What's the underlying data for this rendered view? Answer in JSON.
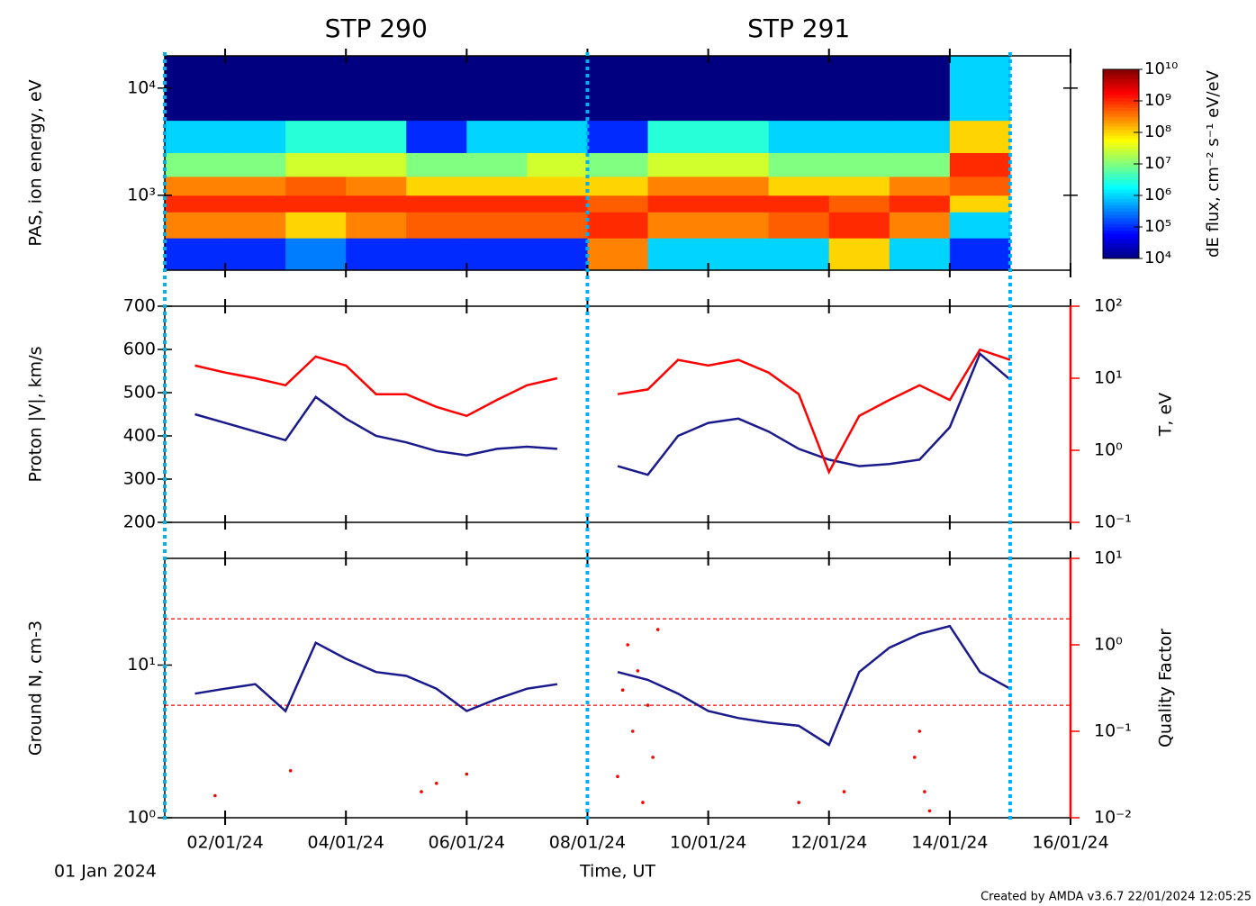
{
  "periods": [
    {
      "label": "STP 290",
      "start": "2024-01-01",
      "end": "2024-01-08"
    },
    {
      "label": "STP 291",
      "start": "2024-01-08",
      "end": "2024-01-15"
    }
  ],
  "period_color": "#00b0f0",
  "credit": "Created by AMDA v3.6.7 22/01/2024 12:05:25",
  "chart_data": [
    {
      "type": "heatmap",
      "ylabel": "PAS, ion energy, eV",
      "ylog": true,
      "ylim": [
        200,
        20000
      ],
      "yticks": [
        {
          "value": 1000,
          "label": "10³"
        },
        {
          "value": 10000,
          "label": "10⁴"
        }
      ],
      "x": [
        "2024-01-01",
        "2024-01-02",
        "2024-01-03",
        "2024-01-04",
        "2024-01-05",
        "2024-01-06",
        "2024-01-07",
        "2024-01-08",
        "2024-01-09",
        "2024-01-10",
        "2024-01-11",
        "2024-01-12",
        "2024-01-13",
        "2024-01-14",
        "2024-01-15"
      ],
      "y": [
        200,
        400,
        700,
        1000,
        1500,
        2500,
        5000,
        20000
      ],
      "z": [
        [
          100000.0,
          300000000.0,
          1000000000.0,
          300000000.0,
          10000000.0,
          1000000.0,
          10000.0
        ],
        [
          100000.0,
          300000000.0,
          1000000000.0,
          300000000.0,
          10000000.0,
          1000000.0,
          10000.0
        ],
        [
          300000.0,
          100000000.0,
          1000000000.0,
          500000000.0,
          30000000.0,
          3000000.0,
          10000.0
        ],
        [
          100000.0,
          300000000.0,
          1000000000.0,
          300000000.0,
          30000000.0,
          3000000.0,
          10000.0
        ],
        [
          100000.0,
          500000000.0,
          1000000000.0,
          100000000.0,
          10000000.0,
          100000.0,
          10000.0
        ],
        [
          100000.0,
          500000000.0,
          1000000000.0,
          100000000.0,
          10000000.0,
          1000000.0,
          10000.0
        ],
        [
          100000.0,
          500000000.0,
          1000000000.0,
          100000000.0,
          30000000.0,
          1000000.0,
          10000.0
        ],
        [
          300000000.0,
          1000000000.0,
          500000000.0,
          100000000.0,
          10000000.0,
          100000.0,
          10000.0
        ],
        [
          1000000.0,
          300000000.0,
          1000000000.0,
          300000000.0,
          30000000.0,
          3000000.0,
          10000.0
        ],
        [
          1000000.0,
          300000000.0,
          1000000000.0,
          300000000.0,
          30000000.0,
          3000000.0,
          10000.0
        ],
        [
          1000000.0,
          500000000.0,
          1000000000.0,
          100000000.0,
          10000000.0,
          1000000.0,
          10000.0
        ],
        [
          100000000.0,
          1000000000.0,
          500000000.0,
          100000000.0,
          10000000.0,
          1000000.0,
          10000.0
        ],
        [
          1000000.0,
          300000000.0,
          1000000000.0,
          300000000.0,
          10000000.0,
          1000000.0,
          10000.0
        ],
        [
          100000.0,
          1000000.0,
          100000000.0,
          500000000.0,
          1000000000.0,
          100000000.0,
          1000000.0
        ]
      ],
      "zlabel": "dE flux, cm⁻² s⁻¹ eV/eV",
      "zlog": true,
      "zlim": [
        10000.0,
        10000000000.0
      ],
      "zticks": [
        {
          "value": 10000.0,
          "label": "10⁴"
        },
        {
          "value": 100000.0,
          "label": "10⁵"
        },
        {
          "value": 1000000.0,
          "label": "10⁶"
        },
        {
          "value": 10000000.0,
          "label": "10⁷"
        },
        {
          "value": 100000000.0,
          "label": "10⁸"
        },
        {
          "value": 1000000000.0,
          "label": "10⁹"
        },
        {
          "value": 10000000000.0,
          "label": "10¹⁰"
        }
      ]
    },
    {
      "type": "line",
      "ylabel": "Proton |V|, km/s",
      "ylim": [
        200,
        700
      ],
      "yticks": [
        200,
        300,
        400,
        500,
        600,
        700
      ],
      "y2label": "T, eV",
      "y2log": true,
      "y2lim": [
        0.1,
        100
      ],
      "y2ticks": [
        {
          "value": 0.1,
          "label": "10⁻¹"
        },
        {
          "value": 1,
          "label": "10⁰"
        },
        {
          "value": 10,
          "label": "10¹"
        },
        {
          "value": 100,
          "label": "10²"
        }
      ],
      "x": [
        "2024-01-01T12:00",
        "2024-01-02T00:00",
        "2024-01-02T12:00",
        "2024-01-03T00:00",
        "2024-01-03T12:00",
        "2024-01-04T00:00",
        "2024-01-04T12:00",
        "2024-01-05T00:00",
        "2024-01-05T12:00",
        "2024-01-06T00:00",
        "2024-01-06T12:00",
        "2024-01-07T00:00",
        "2024-01-07T12:00",
        "2024-01-08T00:00",
        "2024-01-08T12:00",
        "2024-01-09T00:00",
        "2024-01-09T12:00",
        "2024-01-10T00:00",
        "2024-01-10T12:00",
        "2024-01-11T00:00",
        "2024-01-11T12:00",
        "2024-01-12T00:00",
        "2024-01-12T12:00",
        "2024-01-13T00:00",
        "2024-01-13T12:00",
        "2024-01-14T00:00",
        "2024-01-14T12:00",
        "2024-01-15T00:00"
      ],
      "series": [
        {
          "color": "#1a1a8c",
          "values": [
            450,
            430,
            410,
            390,
            490,
            440,
            400,
            385,
            365,
            355,
            370,
            375,
            370,
            null,
            330,
            310,
            400,
            430,
            440,
            410,
            370,
            345,
            330,
            335,
            345,
            420,
            590,
            530
          ]
        },
        {
          "color": "#ff0000",
          "axis": "y2",
          "values": [
            15,
            12,
            10,
            8,
            20,
            15,
            6,
            6,
            4,
            3,
            5,
            8,
            10,
            null,
            6,
            7,
            18,
            15,
            18,
            12,
            6,
            0.5,
            3,
            5,
            8,
            5,
            25,
            18
          ]
        }
      ]
    },
    {
      "type": "line",
      "ylabel": "Ground N, cm-3",
      "ylog": true,
      "ylim": [
        1,
        50
      ],
      "yticks": [
        {
          "value": 1,
          "label": "10⁰"
        },
        {
          "value": 10,
          "label": "10¹"
        }
      ],
      "y2label": "Quality Factor",
      "y2log": true,
      "y2lim": [
        0.01,
        10
      ],
      "y2ticks": [
        {
          "value": 0.01,
          "label": "10⁻²"
        },
        {
          "value": 0.1,
          "label": "10⁻¹"
        },
        {
          "value": 1,
          "label": "10⁰"
        },
        {
          "value": 10,
          "label": "10¹"
        }
      ],
      "x": [
        "2024-01-01T12:00",
        "2024-01-02T00:00",
        "2024-01-02T12:00",
        "2024-01-03T00:00",
        "2024-01-03T12:00",
        "2024-01-04T00:00",
        "2024-01-04T12:00",
        "2024-01-05T00:00",
        "2024-01-05T12:00",
        "2024-01-06T00:00",
        "2024-01-06T12:00",
        "2024-01-07T00:00",
        "2024-01-07T12:00",
        "2024-01-08T00:00",
        "2024-01-08T12:00",
        "2024-01-09T00:00",
        "2024-01-09T12:00",
        "2024-01-10T00:00",
        "2024-01-10T12:00",
        "2024-01-11T00:00",
        "2024-01-11T12:00",
        "2024-01-12T00:00",
        "2024-01-12T12:00",
        "2024-01-13T00:00",
        "2024-01-13T12:00",
        "2024-01-14T00:00",
        "2024-01-14T12:00",
        "2024-01-15T00:00"
      ],
      "series": [
        {
          "color": "#1a1a8c",
          "values": [
            6.5,
            7,
            7.5,
            5,
            14,
            11,
            9,
            8.5,
            7,
            5,
            6,
            7,
            7.5,
            null,
            9,
            8,
            6.5,
            5,
            4.5,
            4.2,
            4,
            3,
            9,
            13,
            16,
            18,
            9,
            7
          ]
        },
        {
          "type": "scatter",
          "color": "#ff0000",
          "axis": "y2",
          "x": [
            "2024-01-01T20:00",
            "2024-01-03T02:00",
            "2024-01-05T06:00",
            "2024-01-05T12:00",
            "2024-01-06T00:00",
            "2024-01-08T12:00",
            "2024-01-08T14:00",
            "2024-01-08T16:00",
            "2024-01-08T18:00",
            "2024-01-08T20:00",
            "2024-01-08T22:00",
            "2024-01-09T00:00",
            "2024-01-09T02:00",
            "2024-01-09T04:00",
            "2024-01-11T12:00",
            "2024-01-12T06:00",
            "2024-01-13T10:00",
            "2024-01-13T12:00",
            "2024-01-13T14:00",
            "2024-01-13T16:00"
          ],
          "values": [
            0.018,
            0.035,
            0.02,
            0.025,
            0.032,
            0.03,
            0.3,
            1.0,
            0.1,
            0.5,
            0.015,
            0.2,
            0.05,
            1.5,
            0.015,
            0.02,
            0.05,
            0.1,
            0.02,
            0.012
          ]
        }
      ],
      "reference_lines": [
        {
          "value": 2,
          "axis": "y2",
          "color": "#ff0000"
        },
        {
          "value": 0.2,
          "axis": "y2",
          "color": "#ff0000"
        }
      ],
      "xlim": [
        "2024-01-01",
        "2024-01-16"
      ],
      "xticks": [
        {
          "value": "2024-01-02",
          "label": "02/01/24"
        },
        {
          "value": "2024-01-04",
          "label": "04/01/24"
        },
        {
          "value": "2024-01-06",
          "label": "06/01/24"
        },
        {
          "value": "2024-01-08",
          "label": "08/01/24"
        },
        {
          "value": "2024-01-10",
          "label": "10/01/24"
        },
        {
          "value": "2024-01-12",
          "label": "12/01/24"
        },
        {
          "value": "2024-01-14",
          "label": "14/01/24"
        },
        {
          "value": "2024-01-16",
          "label": "16/01/24"
        }
      ],
      "xlabel": "Time, UT",
      "start_label": "01 Jan 2024"
    }
  ]
}
